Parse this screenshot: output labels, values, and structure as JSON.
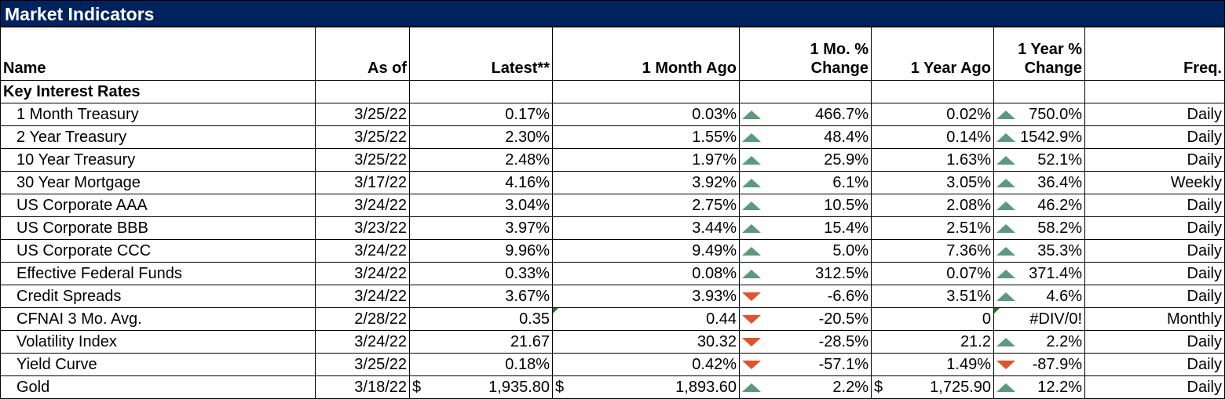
{
  "title": "Market Indicators",
  "headers": {
    "name": "Name",
    "as_of": "As of",
    "latest": "Latest**",
    "month_ago": "1 Month Ago",
    "mo_change_1": "1 Mo. %",
    "mo_change_2": "Change",
    "year_ago": "1 Year Ago",
    "yr_change_1": "1 Year %",
    "yr_change_2": "Change",
    "freq": "Freq."
  },
  "section": "Key Interest Rates",
  "colors": {
    "title_bg": "#00235e",
    "up": "#5b9a7d",
    "down": "#e0532c"
  },
  "rows": [
    {
      "name": "1 Month Treasury",
      "as_of": "3/25/22",
      "latest": "0.17%",
      "month_ago": "0.03%",
      "mo_dir": "up",
      "mo_chg": "466.7%",
      "year_ago": "0.02%",
      "yr_dir": "up",
      "yr_chg": "750.0%",
      "freq": "Daily"
    },
    {
      "name": "2 Year Treasury",
      "as_of": "3/25/22",
      "latest": "2.30%",
      "month_ago": "1.55%",
      "mo_dir": "up",
      "mo_chg": "48.4%",
      "year_ago": "0.14%",
      "yr_dir": "up",
      "yr_chg": "1542.9%",
      "freq": "Daily"
    },
    {
      "name": "10 Year Treasury",
      "as_of": "3/25/22",
      "latest": "2.48%",
      "month_ago": "1.97%",
      "mo_dir": "up",
      "mo_chg": "25.9%",
      "year_ago": "1.63%",
      "yr_dir": "up",
      "yr_chg": "52.1%",
      "freq": "Daily"
    },
    {
      "name": "30 Year Mortgage",
      "as_of": "3/17/22",
      "latest": "4.16%",
      "month_ago": "3.92%",
      "mo_dir": "up",
      "mo_chg": "6.1%",
      "year_ago": "3.05%",
      "yr_dir": "up",
      "yr_chg": "36.4%",
      "freq": "Weekly"
    },
    {
      "name": "US Corporate AAA",
      "as_of": "3/24/22",
      "latest": "3.04%",
      "month_ago": "2.75%",
      "mo_dir": "up",
      "mo_chg": "10.5%",
      "year_ago": "2.08%",
      "yr_dir": "up",
      "yr_chg": "46.2%",
      "freq": "Daily"
    },
    {
      "name": "US Corporate BBB",
      "as_of": "3/23/22",
      "latest": "3.97%",
      "month_ago": "3.44%",
      "mo_dir": "up",
      "mo_chg": "15.4%",
      "year_ago": "2.51%",
      "yr_dir": "up",
      "yr_chg": "58.2%",
      "freq": "Daily"
    },
    {
      "name": "US Corporate CCC",
      "as_of": "3/24/22",
      "latest": "9.96%",
      "month_ago": "9.49%",
      "mo_dir": "up",
      "mo_chg": "5.0%",
      "year_ago": "7.36%",
      "yr_dir": "up",
      "yr_chg": "35.3%",
      "freq": "Daily"
    },
    {
      "name": "Effective Federal Funds",
      "as_of": "3/24/22",
      "latest": "0.33%",
      "month_ago": "0.08%",
      "mo_dir": "up",
      "mo_chg": "312.5%",
      "year_ago": "0.07%",
      "yr_dir": "up",
      "yr_chg": "371.4%",
      "freq": "Daily"
    },
    {
      "name": "Credit Spreads",
      "as_of": "3/24/22",
      "latest": "3.67%",
      "month_ago": "3.93%",
      "mo_dir": "down",
      "mo_chg": "-6.6%",
      "year_ago": "3.51%",
      "yr_dir": "up",
      "yr_chg": "4.6%",
      "freq": "Daily"
    },
    {
      "name": "CFNAI 3 Mo. Avg.",
      "as_of": "2/28/22",
      "latest": "0.35",
      "month_ago": "0.44",
      "mo_dir": "down",
      "mo_chg": "-20.5%",
      "year_ago": "0",
      "yr_dir": "none",
      "yr_chg": "#DIV/0!",
      "freq": "Monthly",
      "flag_mo": true,
      "flag_yr": true
    },
    {
      "name": "Volatility Index",
      "as_of": "3/24/22",
      "latest": "21.67",
      "month_ago": "30.32",
      "mo_dir": "down",
      "mo_chg": "-28.5%",
      "year_ago": "21.2",
      "yr_dir": "up",
      "yr_chg": "2.2%",
      "freq": "Daily"
    },
    {
      "name": "Yield Curve",
      "as_of": "3/25/22",
      "latest": "0.18%",
      "month_ago": "0.42%",
      "mo_dir": "down",
      "mo_chg": "-57.1%",
      "year_ago": "1.49%",
      "yr_dir": "down",
      "yr_chg": "-87.9%",
      "freq": "Daily"
    },
    {
      "name": "Gold",
      "as_of": "3/18/22",
      "latest": "1,935.80",
      "month_ago": "1,893.60",
      "mo_dir": "up",
      "mo_chg": "2.2%",
      "year_ago": "1,725.90",
      "yr_dir": "up",
      "yr_chg": "12.2%",
      "freq": "Daily",
      "currency": "$"
    }
  ]
}
